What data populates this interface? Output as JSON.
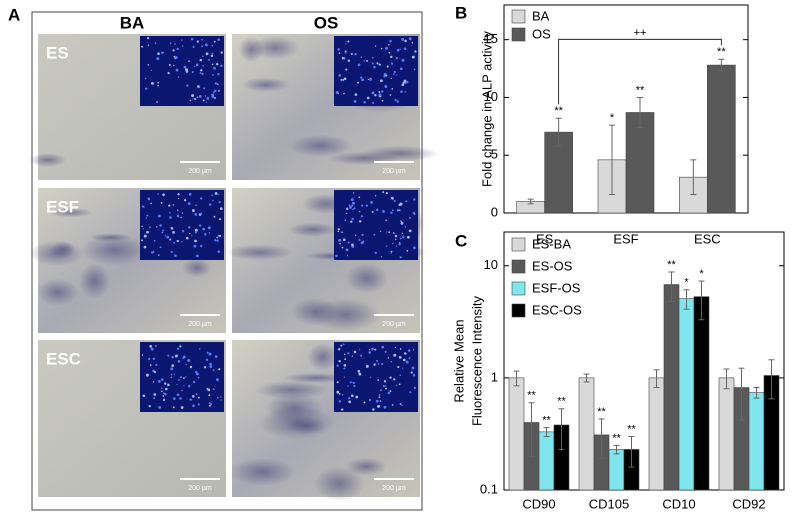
{
  "panel_a": {
    "label": "A",
    "columns": [
      "BA",
      "OS"
    ],
    "rows": [
      "ES",
      "ESF",
      "ESC"
    ],
    "scale_bar": "200 µm"
  },
  "chart_data": [
    {
      "type": "bar",
      "panel": "B",
      "ylabel": "Fold change in ALP activity",
      "categories": [
        "ES",
        "ESF",
        "ESC"
      ],
      "series": [
        {
          "name": "BA",
          "color": "#d9d9d9",
          "values": [
            1,
            4.6,
            3.1
          ],
          "errors": [
            0.2,
            3,
            1.5
          ],
          "significance": [
            null,
            "*",
            null
          ]
        },
        {
          "name": "OS",
          "color": "#595959",
          "values": [
            7,
            8.7,
            12.8
          ],
          "errors": [
            1.2,
            1.3,
            0.5
          ],
          "significance": [
            "**",
            "**",
            "**"
          ]
        }
      ],
      "bracket_label": "++",
      "ylim": [
        0,
        18
      ],
      "yticks": [
        0,
        5,
        10,
        15
      ],
      "log_scale": false,
      "legend": "upper-left"
    },
    {
      "type": "bar",
      "panel": "C",
      "ylabel": [
        "Relative Mean",
        "Fluorescence Intensity"
      ],
      "categories": [
        "CD90",
        "CD105",
        "CD10",
        "CD92"
      ],
      "series": [
        {
          "name": "ES-BA",
          "color": "#d9d9d9",
          "values": [
            1,
            1,
            1,
            1
          ],
          "errors": [
            0.15,
            0.08,
            0.18,
            0.2
          ],
          "significance": [
            null,
            null,
            null,
            null
          ]
        },
        {
          "name": "ES-OS",
          "color": "#595959",
          "values": [
            0.4,
            0.31,
            6.8,
            0.82
          ],
          "errors": [
            0.2,
            0.12,
            2.0,
            0.4
          ],
          "significance": [
            "**",
            "**",
            "**",
            null
          ]
        },
        {
          "name": "ESF-OS",
          "color": "#80e6ee",
          "values": [
            0.33,
            0.23,
            5.1,
            0.74
          ],
          "errors": [
            0.03,
            0.02,
            1.0,
            0.08
          ],
          "significance": [
            "**",
            "**",
            "*",
            null
          ]
        },
        {
          "name": "ESC-OS",
          "color": "#000000",
          "values": [
            0.38,
            0.23,
            5.3,
            1.05
          ],
          "errors": [
            0.15,
            0.07,
            2.0,
            0.4
          ],
          "significance": [
            "**",
            "**",
            "*",
            null
          ]
        }
      ],
      "ylim": [
        0.1,
        20
      ],
      "yticks": [
        0.1,
        1,
        10
      ],
      "log_scale": true,
      "legend": "upper-left"
    }
  ]
}
